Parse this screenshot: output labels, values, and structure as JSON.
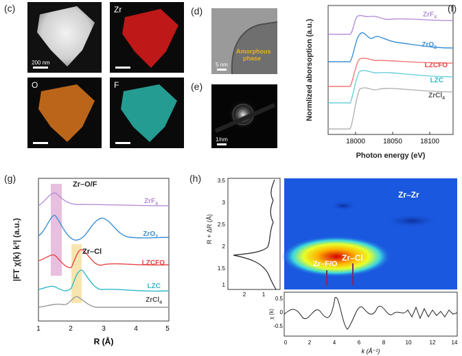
{
  "panels": {
    "c": {
      "label": "(c)",
      "tiles": [
        {
          "label": "",
          "scalebar": "200 nm",
          "color": "#d9d9d9"
        },
        {
          "label": "Zr",
          "scalebar": "",
          "color": "#d21a1a"
        },
        {
          "label": "O",
          "scalebar": "",
          "color": "#d9751c"
        },
        {
          "label": "F",
          "scalebar": "",
          "color": "#2cc0b4"
        }
      ]
    },
    "d": {
      "label": "(d)",
      "scalebar": "5 nm",
      "annotation_line1": "Amorphous",
      "annotation_line2": "phase"
    },
    "e": {
      "label": "(e)",
      "scalebar": "1/nm"
    },
    "f": {
      "label": "(f)",
      "ylabel": "Normlized aborsoption (a.u.)",
      "xlabel": "Photon energy (eV)",
      "ticks": [
        "18000",
        "18050",
        "18100"
      ],
      "curves": [
        {
          "name": "ZrF",
          "sub": "4",
          "color": "#b58fd6"
        },
        {
          "name": "ZrO",
          "sub": "2",
          "color": "#3b8fd6"
        },
        {
          "name": "LZCFO",
          "sub": "",
          "color": "#e54545"
        },
        {
          "name": "LZC",
          "sub": "",
          "color": "#2fb8c8"
        },
        {
          "name": "ZrCl",
          "sub": "4",
          "color": "#8a8a8a"
        }
      ]
    },
    "g": {
      "label": "(g)",
      "ylabel": "|FT χ(k) k³| (a.u.)",
      "xlabel": "R (Å)",
      "ticks": [
        "1",
        "2",
        "3",
        "4",
        "5"
      ],
      "annotation_zrof": "Zr–O/F",
      "annotation_zrcl": "Zr–Cl",
      "curves": [
        {
          "name": "ZrF",
          "sub": "4",
          "color": "#b58fd6"
        },
        {
          "name": "ZrO",
          "sub": "2",
          "color": "#3b8fd6"
        },
        {
          "name": "LZCFO",
          "sub": "",
          "color": "#e54545"
        },
        {
          "name": "LZC",
          "sub": "",
          "color": "#2fb8c8"
        },
        {
          "name": "ZrCl",
          "sub": "4",
          "color": "#8a8a8a"
        }
      ]
    },
    "h": {
      "label": "(h)",
      "ylabel": "R + ΔR (Å)",
      "yticks": [
        "3.5",
        "3",
        "2.5",
        "2",
        "1.5",
        "1"
      ],
      "side_ticks": [
        "2",
        "1"
      ],
      "map_label_zrzr": "Zr–Zr",
      "map_label_zrcl": "Zr–Cl",
      "map_label_zrfo": "Zr–F/O",
      "chi_ylabel": "χ (k)",
      "chi_yticks": [
        "0.5",
        "0",
        "-0.5"
      ],
      "xticks": [
        "0",
        "2",
        "4",
        "6",
        "8",
        "10",
        "12",
        "14"
      ],
      "xlabel": "k (Å⁻¹)"
    }
  }
}
